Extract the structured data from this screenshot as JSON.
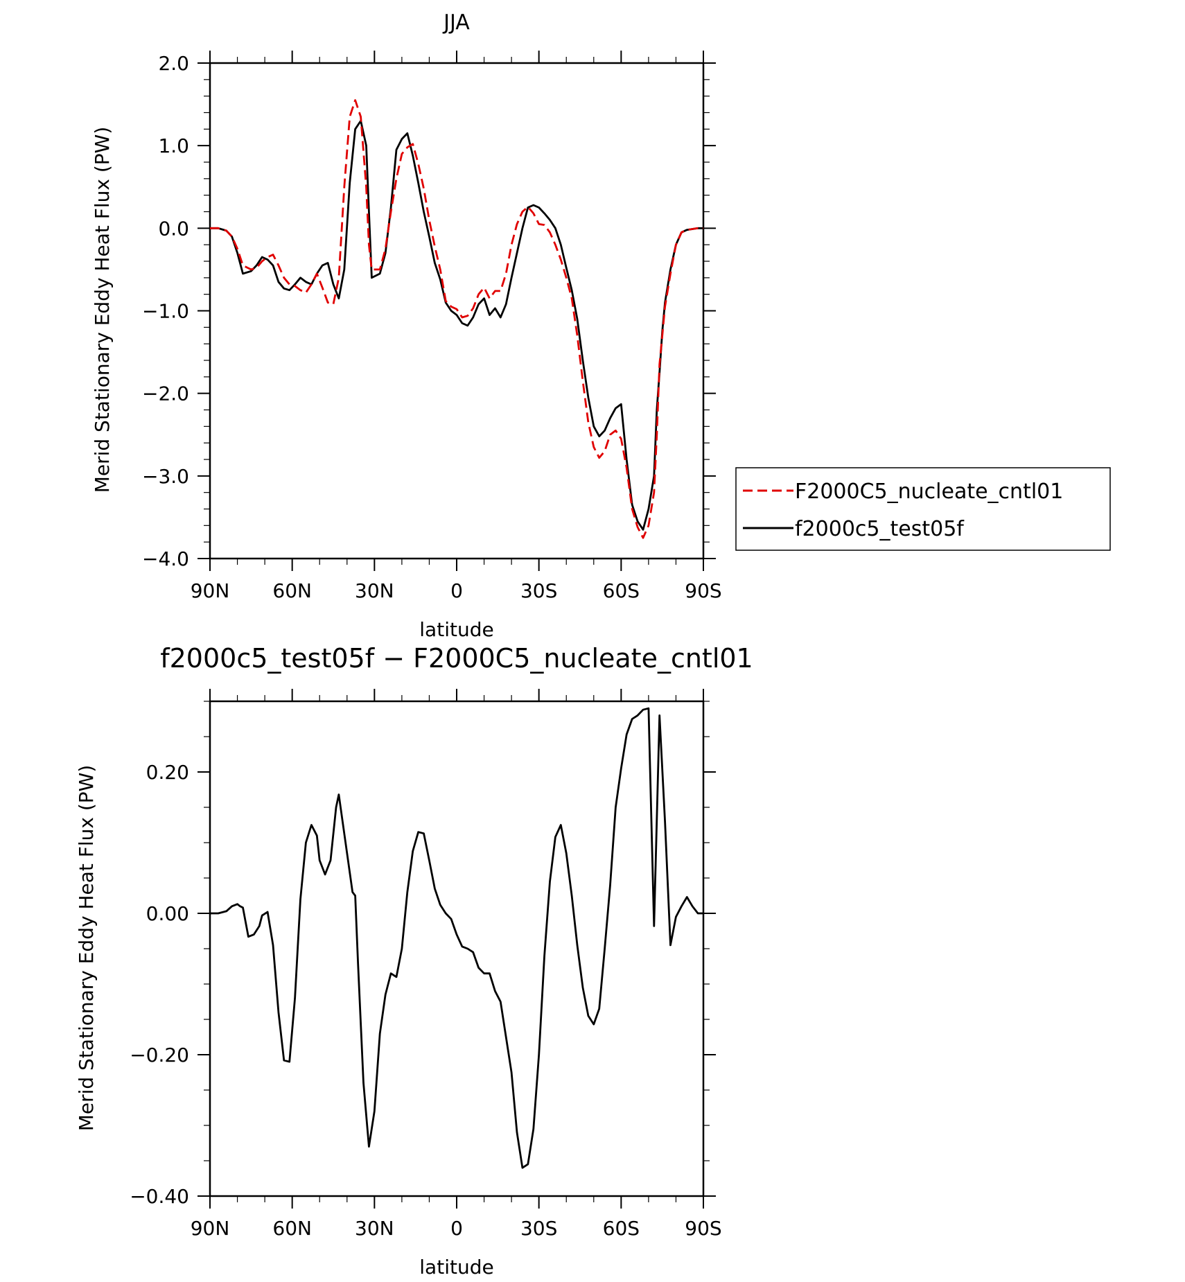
{
  "chart_data": [
    {
      "type": "line",
      "title": "JJA",
      "xlabel": "latitude",
      "ylabel": "Merid Stationary Eddy Heat Flux (PW)",
      "xlim": [
        90,
        -90
      ],
      "ylim": [
        -4.0,
        2.0
      ],
      "x_ticks": [
        90,
        60,
        30,
        0,
        -30,
        -60,
        -90
      ],
      "x_tick_labels": [
        "90N",
        "60N",
        "30N",
        "0",
        "30S",
        "60S",
        "90S"
      ],
      "y_ticks": [
        2.0,
        1.0,
        0.0,
        -1.0,
        -2.0,
        -3.0,
        -4.0
      ],
      "y_tick_labels": [
        "2.0",
        "1.0",
        "0.0",
        "−1.0",
        "−2.0",
        "−3.0",
        "−4.0"
      ],
      "legend_position": "right",
      "series": [
        {
          "name": "F2000C5_nucleate_cntl01",
          "color": "#e00000",
          "dash": "dashed",
          "x": [
            90,
            87,
            84,
            82,
            80,
            78,
            75,
            73,
            71,
            69,
            67,
            65,
            63,
            61,
            59,
            57,
            55,
            53,
            51,
            49,
            47,
            45,
            43,
            41,
            39,
            37,
            35,
            33,
            32,
            31,
            28,
            26,
            24,
            22,
            20,
            18,
            16,
            14,
            12,
            10,
            8,
            6,
            4,
            2,
            0,
            -2,
            -4,
            -6,
            -8,
            -10,
            -12,
            -14,
            -16,
            -18,
            -20,
            -22,
            -24,
            -26,
            -28,
            -30,
            -32,
            -34,
            -36,
            -38,
            -40,
            -42,
            -44,
            -46,
            -48,
            -50,
            -52,
            -54,
            -56,
            -58,
            -60,
            -62,
            -64,
            -66,
            -68,
            -70,
            -72,
            -73,
            -74,
            -75,
            -76,
            -78,
            -80,
            -82,
            -84,
            -86,
            -88,
            -90
          ],
          "values": [
            0.0,
            0.0,
            -0.03,
            -0.1,
            -0.25,
            -0.45,
            -0.5,
            -0.48,
            -0.4,
            -0.35,
            -0.32,
            -0.45,
            -0.6,
            -0.68,
            -0.7,
            -0.75,
            -0.78,
            -0.68,
            -0.55,
            -0.72,
            -0.9,
            -0.92,
            -0.6,
            0.5,
            1.35,
            1.55,
            1.35,
            0.5,
            -0.2,
            -0.5,
            -0.5,
            -0.25,
            0.2,
            0.6,
            0.9,
            0.98,
            1.02,
            0.78,
            0.48,
            0.1,
            -0.22,
            -0.5,
            -0.88,
            -0.95,
            -0.98,
            -1.08,
            -1.06,
            -0.97,
            -0.8,
            -0.72,
            -0.85,
            -0.76,
            -0.76,
            -0.55,
            -0.2,
            0.05,
            0.2,
            0.26,
            0.18,
            0.05,
            0.04,
            -0.05,
            -0.2,
            -0.38,
            -0.6,
            -0.85,
            -1.3,
            -1.85,
            -2.35,
            -2.65,
            -2.78,
            -2.7,
            -2.5,
            -2.45,
            -2.55,
            -2.9,
            -3.4,
            -3.62,
            -3.75,
            -3.6,
            -3.2,
            -2.5,
            -1.65,
            -1.3,
            -0.95,
            -0.55,
            -0.2,
            -0.05,
            -0.02,
            -0.01,
            0.0,
            0.0
          ]
        },
        {
          "name": "f2000c5_test05f",
          "color": "#000000",
          "dash": "solid",
          "x": [
            90,
            87,
            84,
            82,
            80,
            78,
            75,
            73,
            71,
            69,
            67,
            65,
            63,
            61,
            59,
            57,
            55,
            53,
            51,
            49,
            47,
            45,
            43,
            41,
            39,
            37,
            35,
            33,
            32,
            31,
            28,
            26,
            24,
            22,
            20,
            18,
            16,
            14,
            12,
            10,
            8,
            6,
            4,
            2,
            0,
            -2,
            -4,
            -6,
            -8,
            -10,
            -12,
            -14,
            -16,
            -18,
            -20,
            -22,
            -24,
            -26,
            -28,
            -30,
            -32,
            -34,
            -36,
            -38,
            -40,
            -42,
            -44,
            -46,
            -48,
            -50,
            -52,
            -54,
            -56,
            -58,
            -60,
            -62,
            -64,
            -66,
            -68,
            -70,
            -72,
            -73,
            -74,
            -75,
            -76,
            -78,
            -80,
            -82,
            -84,
            -86,
            -88,
            -90
          ],
          "values": [
            0.0,
            0.0,
            -0.03,
            -0.1,
            -0.3,
            -0.55,
            -0.52,
            -0.45,
            -0.35,
            -0.38,
            -0.45,
            -0.65,
            -0.73,
            -0.75,
            -0.68,
            -0.6,
            -0.65,
            -0.68,
            -0.55,
            -0.45,
            -0.42,
            -0.68,
            -0.85,
            -0.5,
            0.55,
            1.2,
            1.3,
            1.0,
            0.2,
            -0.6,
            -0.55,
            -0.3,
            0.25,
            0.95,
            1.08,
            1.15,
            0.88,
            0.55,
            0.2,
            -0.1,
            -0.42,
            -0.62,
            -0.9,
            -1.0,
            -1.05,
            -1.15,
            -1.18,
            -1.08,
            -0.92,
            -0.85,
            -1.05,
            -0.97,
            -1.08,
            -0.92,
            -0.6,
            -0.3,
            0.0,
            0.25,
            0.28,
            0.25,
            0.18,
            0.1,
            0.0,
            -0.2,
            -0.48,
            -0.75,
            -1.1,
            -1.6,
            -2.05,
            -2.4,
            -2.52,
            -2.45,
            -2.3,
            -2.18,
            -2.13,
            -2.8,
            -3.35,
            -3.55,
            -3.65,
            -3.4,
            -3.0,
            -2.2,
            -1.75,
            -1.25,
            -0.9,
            -0.5,
            -0.2,
            -0.05,
            -0.02,
            -0.01,
            0.0,
            0.0
          ]
        }
      ]
    },
    {
      "type": "line",
      "title": "f2000c5_test05f − F2000C5_nucleate_cntl01",
      "xlabel": "latitude",
      "ylabel": "Merid Stationary Eddy Heat Flux (PW)",
      "xlim": [
        90,
        -90
      ],
      "ylim": [
        -0.4,
        0.3
      ],
      "x_ticks": [
        90,
        60,
        30,
        0,
        -30,
        -60,
        -90
      ],
      "x_tick_labels": [
        "90N",
        "60N",
        "30N",
        "0",
        "30S",
        "60S",
        "90S"
      ],
      "y_ticks": [
        0.2,
        0.0,
        -0.2,
        -0.4
      ],
      "y_tick_labels": [
        "0.20",
        "0.00",
        "−0.20",
        "−0.40"
      ],
      "series": [
        {
          "name": "",
          "color": "#000000",
          "dash": "solid",
          "x": [
            90,
            87,
            84,
            82,
            80,
            79,
            78,
            76,
            74,
            72,
            71,
            69,
            67,
            65,
            63,
            61,
            59,
            57,
            55,
            53,
            51,
            50,
            48,
            46,
            44,
            43,
            42,
            40,
            38,
            37,
            36,
            34,
            32,
            30,
            28,
            26,
            24,
            22,
            20,
            18,
            16,
            14,
            12,
            10,
            8,
            6,
            4,
            2,
            0,
            -2,
            -4,
            -6,
            -8,
            -10,
            -12,
            -14,
            -16,
            -18,
            -20,
            -22,
            -24,
            -26,
            -28,
            -30,
            -32,
            -34,
            -36,
            -38,
            -40,
            -42,
            -44,
            -46,
            -48,
            -50,
            -52,
            -54,
            -56,
            -58,
            -60,
            -62,
            -64,
            -66,
            -68,
            -70,
            -72,
            -74,
            -76,
            -78,
            -80,
            -82,
            -84,
            -86,
            -88,
            -90
          ],
          "values": [
            0.0,
            0.0,
            0.003,
            0.01,
            0.013,
            0.01,
            0.008,
            -0.033,
            -0.03,
            -0.018,
            -0.003,
            0.002,
            -0.045,
            -0.14,
            -0.208,
            -0.21,
            -0.12,
            0.02,
            0.1,
            0.125,
            0.11,
            0.075,
            0.055,
            0.075,
            0.15,
            0.168,
            0.14,
            0.085,
            0.03,
            0.025,
            -0.07,
            -0.24,
            -0.33,
            -0.28,
            -0.17,
            -0.115,
            -0.085,
            -0.09,
            -0.05,
            0.03,
            0.088,
            0.115,
            0.113,
            0.075,
            0.035,
            0.012,
            0.0,
            -0.008,
            -0.03,
            -0.047,
            -0.05,
            -0.055,
            -0.077,
            -0.085,
            -0.085,
            -0.11,
            -0.125,
            -0.175,
            -0.225,
            -0.31,
            -0.36,
            -0.355,
            -0.305,
            -0.2,
            -0.06,
            0.045,
            0.108,
            0.125,
            0.085,
            0.025,
            -0.045,
            -0.105,
            -0.145,
            -0.157,
            -0.135,
            -0.05,
            0.04,
            0.15,
            0.205,
            0.253,
            0.275,
            0.28,
            0.288,
            0.29,
            -0.018,
            0.28,
            0.13,
            -0.045,
            -0.005,
            0.01,
            0.023,
            0.01,
            0.0,
            0.0
          ]
        }
      ]
    }
  ]
}
